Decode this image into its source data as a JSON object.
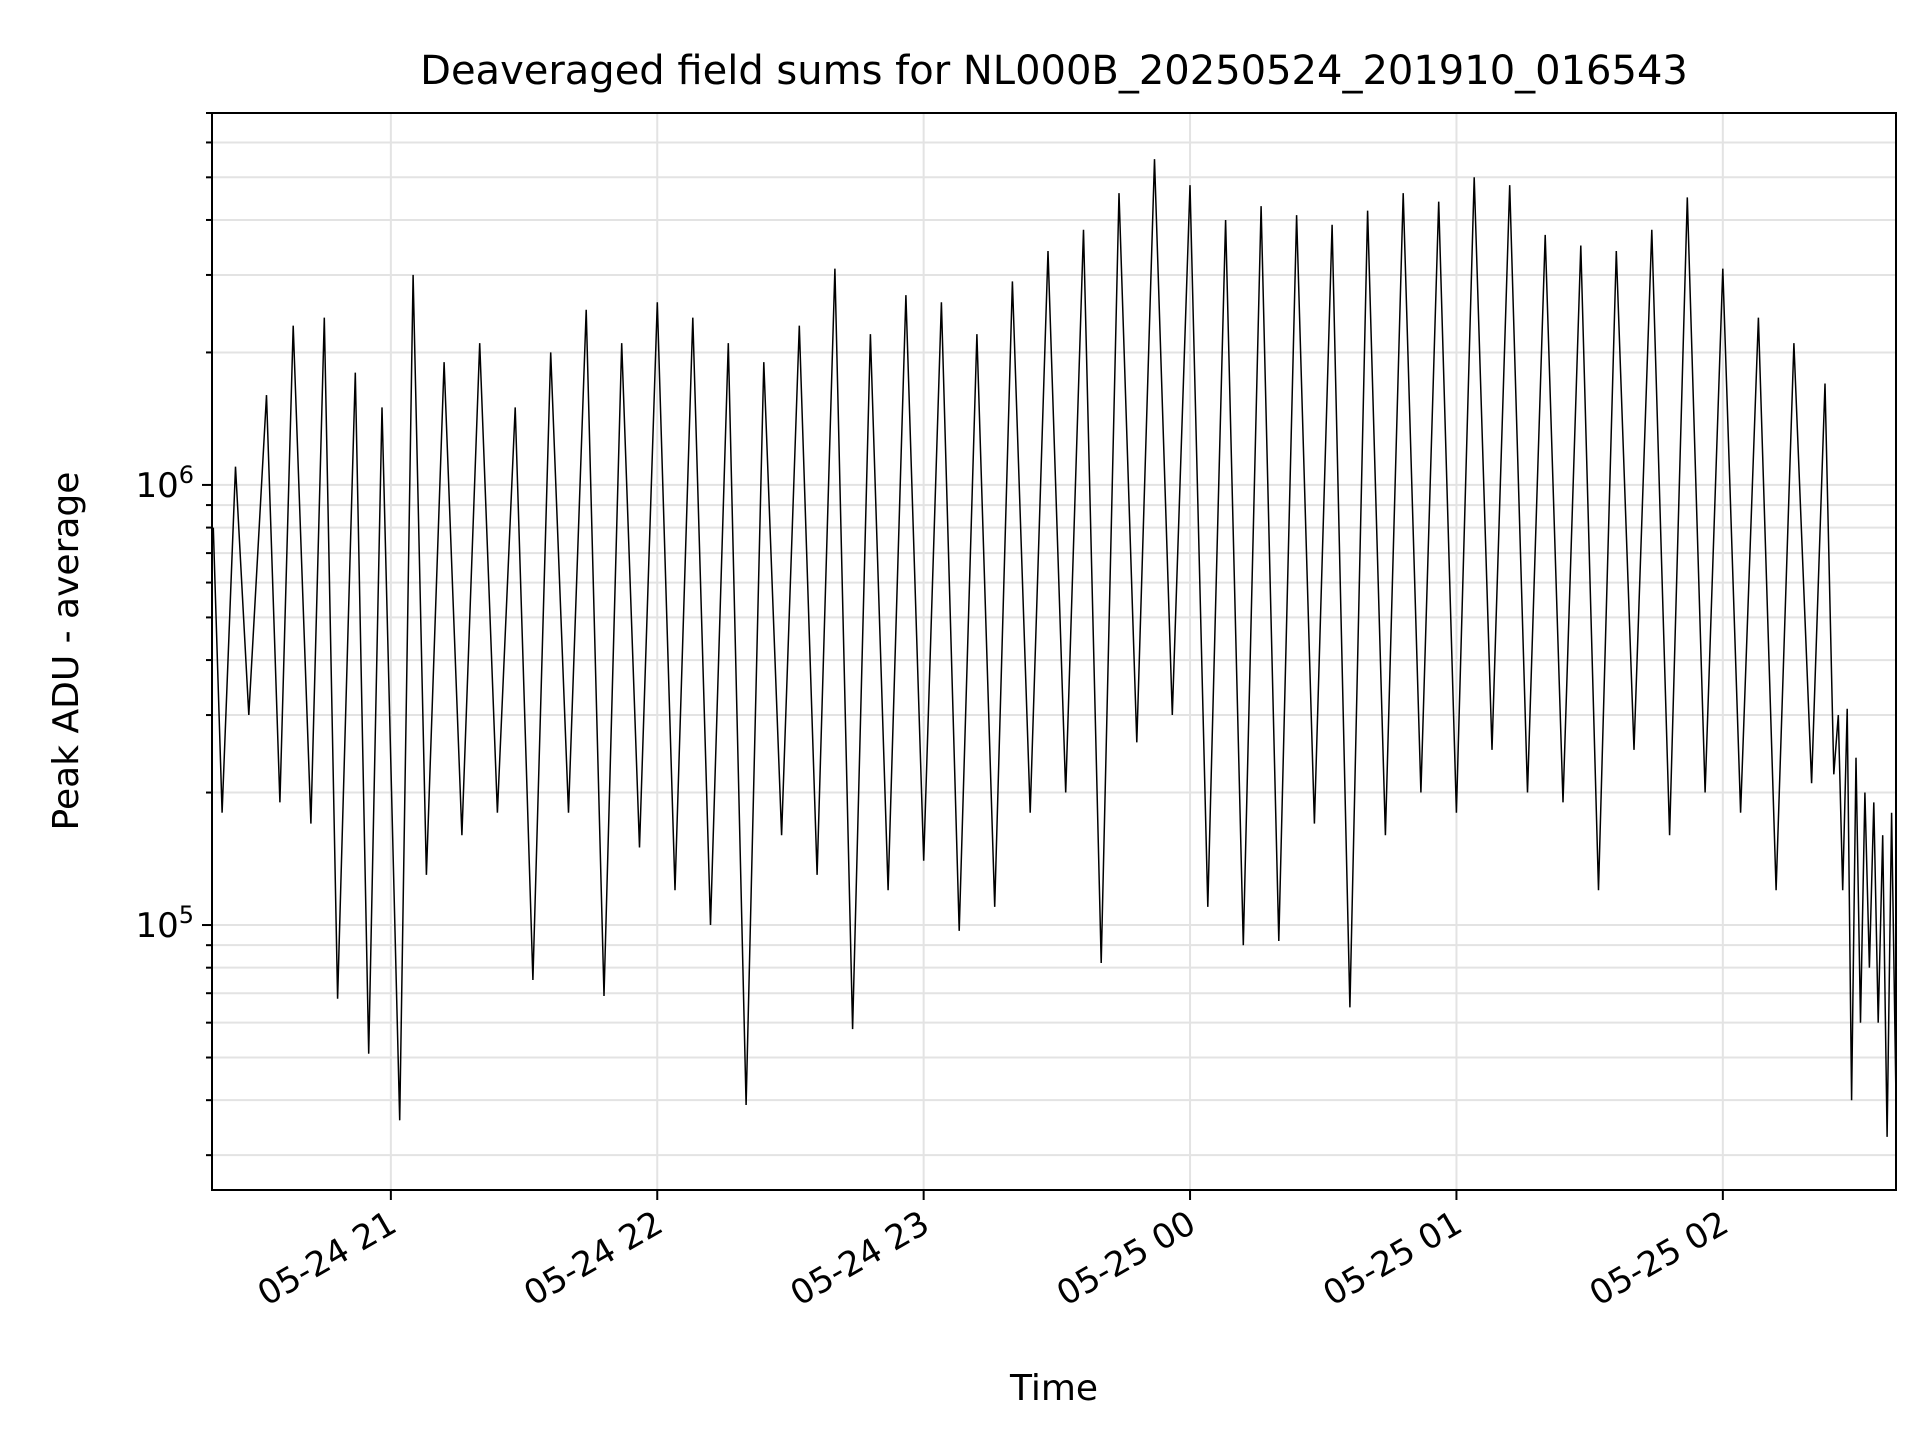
{
  "chart_data": {
    "type": "line",
    "title": "Deaveraged field sums for NL000B_20250524_201910_016543",
    "xlabel": "Time",
    "ylabel": "Peak ADU - average",
    "yscale": "log",
    "grid": true,
    "y_major_ticks": [
      {
        "value": 100000,
        "base": "10",
        "exponent": "5"
      },
      {
        "value": 1000000,
        "base": "10",
        "exponent": "6"
      }
    ],
    "x_ticks": [
      "05-24 21",
      "05-24 22",
      "05-24 23",
      "05-25 00",
      "05-25 01",
      "05-25 02"
    ],
    "x_tick_times": [
      "2025-05-24T21:00",
      "2025-05-24T22:00",
      "2025-05-24T23:00",
      "2025-05-25T00:00",
      "2025-05-25T01:00",
      "2025-05-25T02:00"
    ],
    "xlim": [
      "2025-05-24T20:19:43",
      "2025-05-25T02:39:00"
    ],
    "ylim": [
      25000,
      7000000
    ],
    "line_color": "#000000",
    "series": [
      {
        "points": [
          [
            "2025-05-24T20:20",
            800000
          ],
          [
            "2025-05-24T20:22",
            180000
          ],
          [
            "2025-05-24T20:25",
            1100000
          ],
          [
            "2025-05-24T20:28",
            300000
          ],
          [
            "2025-05-24T20:32",
            1600000
          ],
          [
            "2025-05-24T20:35",
            190000
          ],
          [
            "2025-05-24T20:38",
            2300000
          ],
          [
            "2025-05-24T20:42",
            170000
          ],
          [
            "2025-05-24T20:45",
            2400000
          ],
          [
            "2025-05-24T20:48",
            68000
          ],
          [
            "2025-05-24T20:52",
            1800000
          ],
          [
            "2025-05-24T20:55",
            51000
          ],
          [
            "2025-05-24T20:58",
            1500000
          ],
          [
            "2025-05-24T21:02",
            36000
          ],
          [
            "2025-05-24T21:05",
            3000000
          ],
          [
            "2025-05-24T21:08",
            130000
          ],
          [
            "2025-05-24T21:12",
            1900000
          ],
          [
            "2025-05-24T21:16",
            160000
          ],
          [
            "2025-05-24T21:20",
            2100000
          ],
          [
            "2025-05-24T21:24",
            180000
          ],
          [
            "2025-05-24T21:28",
            1500000
          ],
          [
            "2025-05-24T21:32",
            75000
          ],
          [
            "2025-05-24T21:36",
            2000000
          ],
          [
            "2025-05-24T21:40",
            180000
          ],
          [
            "2025-05-24T21:44",
            2500000
          ],
          [
            "2025-05-24T21:48",
            69000
          ],
          [
            "2025-05-24T21:52",
            2100000
          ],
          [
            "2025-05-24T21:56",
            150000
          ],
          [
            "2025-05-24T22:00",
            2600000
          ],
          [
            "2025-05-24T22:04",
            120000
          ],
          [
            "2025-05-24T22:08",
            2400000
          ],
          [
            "2025-05-24T22:12",
            100000
          ],
          [
            "2025-05-24T22:16",
            2100000
          ],
          [
            "2025-05-24T22:20",
            39000
          ],
          [
            "2025-05-24T22:24",
            1900000
          ],
          [
            "2025-05-24T22:28",
            160000
          ],
          [
            "2025-05-24T22:32",
            2300000
          ],
          [
            "2025-05-24T22:36",
            130000
          ],
          [
            "2025-05-24T22:40",
            3100000
          ],
          [
            "2025-05-24T22:44",
            58000
          ],
          [
            "2025-05-24T22:48",
            2200000
          ],
          [
            "2025-05-24T22:52",
            120000
          ],
          [
            "2025-05-24T22:56",
            2700000
          ],
          [
            "2025-05-24T23:00",
            140000
          ],
          [
            "2025-05-24T23:04",
            2600000
          ],
          [
            "2025-05-24T23:08",
            97000
          ],
          [
            "2025-05-24T23:12",
            2200000
          ],
          [
            "2025-05-24T23:16",
            110000
          ],
          [
            "2025-05-24T23:20",
            2900000
          ],
          [
            "2025-05-24T23:24",
            180000
          ],
          [
            "2025-05-24T23:28",
            3400000
          ],
          [
            "2025-05-24T23:32",
            200000
          ],
          [
            "2025-05-24T23:36",
            3800000
          ],
          [
            "2025-05-24T23:40",
            82000
          ],
          [
            "2025-05-24T23:44",
            4600000
          ],
          [
            "2025-05-24T23:48",
            260000
          ],
          [
            "2025-05-24T23:52",
            5500000
          ],
          [
            "2025-05-24T23:56",
            300000
          ],
          [
            "2025-05-25T00:00",
            4800000
          ],
          [
            "2025-05-25T00:04",
            110000
          ],
          [
            "2025-05-25T00:08",
            4000000
          ],
          [
            "2025-05-25T00:12",
            90000
          ],
          [
            "2025-05-25T00:16",
            4300000
          ],
          [
            "2025-05-25T00:20",
            92000
          ],
          [
            "2025-05-25T00:24",
            4100000
          ],
          [
            "2025-05-25T00:28",
            170000
          ],
          [
            "2025-05-25T00:32",
            3900000
          ],
          [
            "2025-05-25T00:36",
            65000
          ],
          [
            "2025-05-25T00:40",
            4200000
          ],
          [
            "2025-05-25T00:44",
            160000
          ],
          [
            "2025-05-25T00:48",
            4600000
          ],
          [
            "2025-05-25T00:52",
            200000
          ],
          [
            "2025-05-25T00:56",
            4400000
          ],
          [
            "2025-05-25T01:00",
            180000
          ],
          [
            "2025-05-25T01:04",
            5000000
          ],
          [
            "2025-05-25T01:08",
            250000
          ],
          [
            "2025-05-25T01:12",
            4800000
          ],
          [
            "2025-05-25T01:16",
            200000
          ],
          [
            "2025-05-25T01:20",
            3700000
          ],
          [
            "2025-05-25T01:24",
            190000
          ],
          [
            "2025-05-25T01:28",
            3500000
          ],
          [
            "2025-05-25T01:32",
            120000
          ],
          [
            "2025-05-25T01:36",
            3400000
          ],
          [
            "2025-05-25T01:40",
            250000
          ],
          [
            "2025-05-25T01:44",
            3800000
          ],
          [
            "2025-05-25T01:48",
            160000
          ],
          [
            "2025-05-25T01:52",
            4500000
          ],
          [
            "2025-05-25T01:56",
            200000
          ],
          [
            "2025-05-25T02:00",
            3100000
          ],
          [
            "2025-05-25T02:04",
            180000
          ],
          [
            "2025-05-25T02:08",
            2400000
          ],
          [
            "2025-05-25T02:12",
            120000
          ],
          [
            "2025-05-25T02:16",
            2100000
          ],
          [
            "2025-05-25T02:20",
            210000
          ],
          [
            "2025-05-25T02:23",
            1700000
          ],
          [
            "2025-05-25T02:25",
            220000
          ],
          [
            "2025-05-25T02:26",
            300000
          ],
          [
            "2025-05-25T02:27",
            120000
          ],
          [
            "2025-05-25T02:28",
            310000
          ],
          [
            "2025-05-25T02:29",
            40000
          ],
          [
            "2025-05-25T02:30",
            240000
          ],
          [
            "2025-05-25T02:31",
            60000
          ],
          [
            "2025-05-25T02:32",
            200000
          ],
          [
            "2025-05-25T02:33",
            80000
          ],
          [
            "2025-05-25T02:34",
            190000
          ],
          [
            "2025-05-25T02:35",
            60000
          ],
          [
            "2025-05-25T02:36",
            160000
          ],
          [
            "2025-05-25T02:37",
            33000
          ],
          [
            "2025-05-25T02:38",
            180000
          ],
          [
            "2025-05-25T02:39",
            40000
          ]
        ]
      }
    ]
  }
}
